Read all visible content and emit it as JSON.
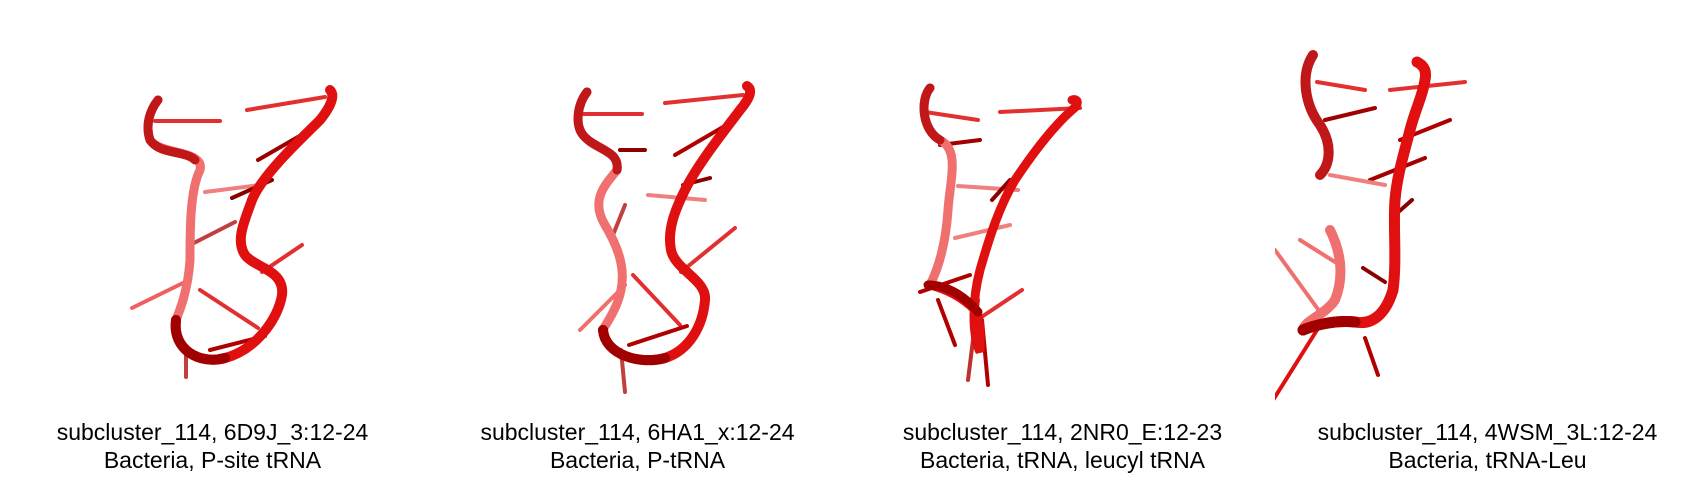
{
  "colors": {
    "background": "#ffffff",
    "backbone": "#e01010",
    "backbone_dark": "#8a0000",
    "backbone_light": "#f07070",
    "caption_text": "#000000"
  },
  "panels": [
    {
      "line1": "subcluster_114, 6D9J_3:12-24",
      "line2": "Bacteria, P-site tRNA"
    },
    {
      "line1": "subcluster_114, 6HA1_x:12-24",
      "line2": "Bacteria, P-tRNA"
    },
    {
      "line1": "subcluster_114, 2NR0_E:12-23",
      "line2": "Bacteria, tRNA, leucyl tRNA"
    },
    {
      "line1": "subcluster_114, 4WSM_3L:12-24",
      "line2": "Bacteria, tRNA-Leu"
    }
  ]
}
